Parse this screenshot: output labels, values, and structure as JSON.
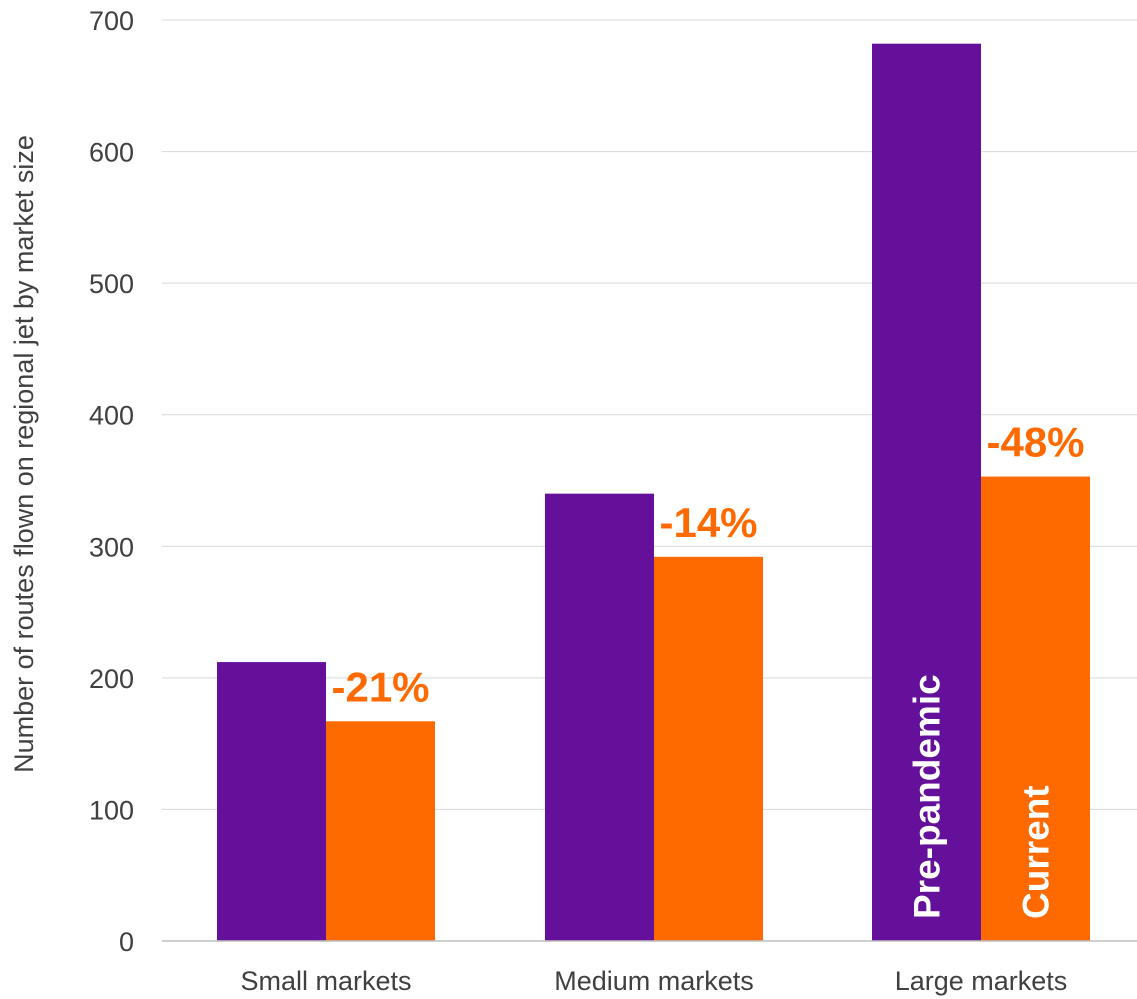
{
  "chart_data": {
    "type": "bar",
    "ylabel": "Number of routes flown on regional jet by market size",
    "xlabel": "",
    "ylim": [
      0,
      700
    ],
    "yticks": [
      0,
      100,
      200,
      300,
      400,
      500,
      600,
      700
    ],
    "grid": true,
    "categories": [
      "Small markets",
      "Medium markets",
      "Large markets"
    ],
    "series": [
      {
        "name": "Pre-pandemic",
        "color": "#65109B",
        "values": [
          212,
          340,
          682
        ]
      },
      {
        "name": "Current",
        "color": "#FF6A00",
        "values": [
          167,
          292,
          353
        ]
      }
    ],
    "annotations": [
      "-21%",
      "-14%",
      "-48%"
    ],
    "annotation_color": "#FF6A00",
    "legend_placement": "inside bars (Large markets)"
  }
}
